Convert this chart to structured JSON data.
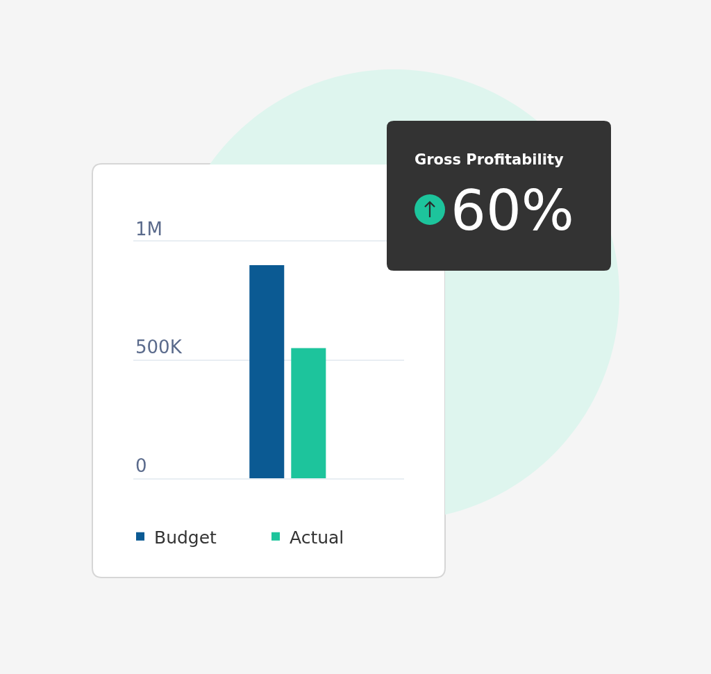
{
  "chart_data": [
    {
      "type": "bar",
      "categories": [
        null
      ],
      "series": [
        {
          "name": "Budget",
          "color": "#0b5a93",
          "values": [
            900000
          ]
        },
        {
          "name": "Actual",
          "color": "#1dc49c",
          "values": [
            550000
          ]
        }
      ],
      "ylim": [
        0,
        1000000
      ],
      "yticks": [
        0,
        {
          "value": 500000,
          "label": "500K"
        },
        {
          "value": 1000000,
          "label": "1M"
        }
      ],
      "grid": "y",
      "legend": "bottom",
      "tick_labels": "y"
    },
    {
      "type": "other",
      "title": "Gross Profitability",
      "annotations": [
        "60%"
      ]
    }
  ]
}
